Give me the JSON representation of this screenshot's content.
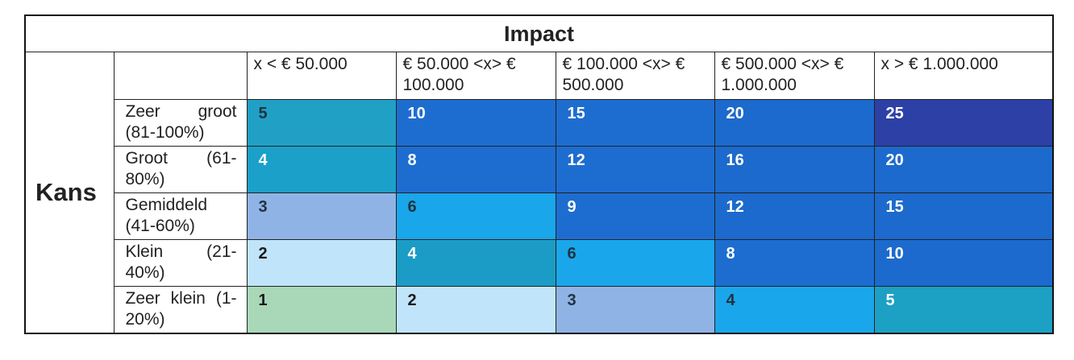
{
  "table": {
    "title": "Impact",
    "row_group_label": "Kans",
    "columns": [
      "x < € 50.000",
      "€ 50.000 <x> € 100.000",
      "€ 100.000 <x> € 500.000",
      "€ 500.000 <x> € 1.000.000",
      "x > € 1.000.000"
    ],
    "rows": [
      {
        "label": "Zeer groot (81-100%)",
        "values": [
          5,
          10,
          15,
          20,
          25
        ],
        "colors": [
          "#21a0c6",
          "#1d6dd0",
          "#1d6dd0",
          "#1c6acd",
          "#2c40a6"
        ]
      },
      {
        "label": "Groot (61-80%)",
        "values": [
          4,
          8,
          12,
          16,
          20
        ],
        "colors": [
          "#1ba0c9",
          "#1d6dd0",
          "#1d6dd0",
          "#1c6acd",
          "#1c6acd"
        ]
      },
      {
        "label": "Gemiddeld (41-60%)",
        "values": [
          3,
          6,
          9,
          12,
          15
        ],
        "colors": [
          "#90b3e6",
          "#1aa6ea",
          "#1d6dd0",
          "#1c6acd",
          "#1c6acd"
        ]
      },
      {
        "label": "Klein (21-40%)",
        "values": [
          2,
          4,
          6,
          8,
          10
        ],
        "colors": [
          "#c0e5fa",
          "#1b9cc6",
          "#1aa6ea",
          "#1d6dd0",
          "#1c6acd"
        ]
      },
      {
        "label": "Zeer klein (1-20%)",
        "values": [
          1,
          2,
          3,
          4,
          5
        ],
        "colors": [
          "#a9d8b9",
          "#c0e5fa",
          "#90b3e6",
          "#1aa6ea",
          "#1ca0c4"
        ]
      }
    ]
  }
}
